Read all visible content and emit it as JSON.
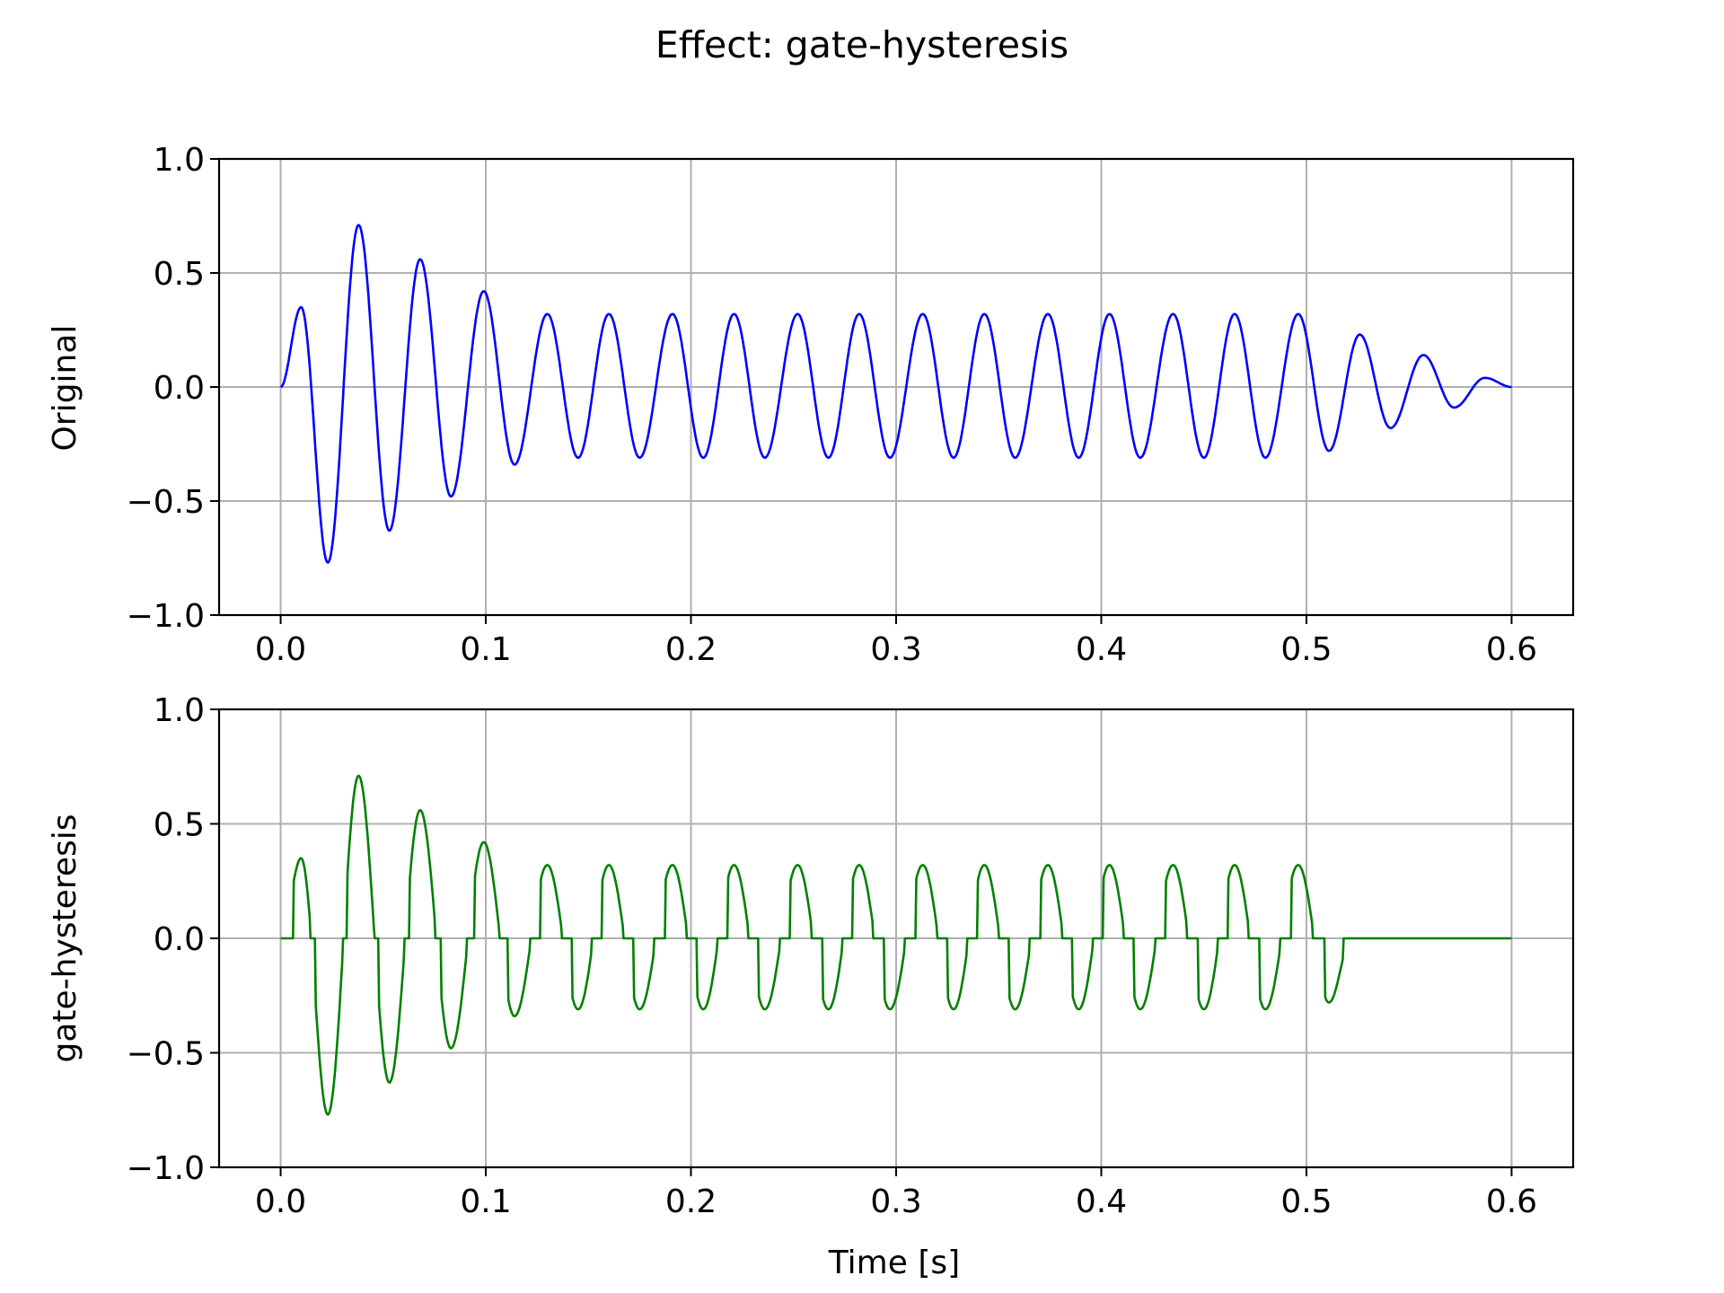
{
  "chart_data": {
    "type": "line",
    "title": "Effect: gate-hysteresis",
    "grid": true,
    "xlabel": "Time [s]",
    "panels": [
      {
        "ylabel": "Original",
        "xlim": [
          -0.03,
          0.63
        ],
        "ylim": [
          -1.0,
          1.0
        ],
        "xticks": [
          0.0,
          0.1,
          0.2,
          0.3,
          0.4,
          0.5,
          0.6
        ],
        "xtick_labels": [
          "0.0",
          "0.1",
          "0.2",
          "0.3",
          "0.4",
          "0.5",
          "0.6"
        ],
        "yticks": [
          -1.0,
          -0.5,
          0.0,
          0.5,
          1.0
        ],
        "ytick_labels": [
          "−1.0",
          "−0.5",
          "0.0",
          "0.5",
          "1.0"
        ],
        "series": [
          {
            "color": "#0000ff",
            "x": [
              0.0,
              0.01,
              0.023,
              0.038,
              0.053,
              0.068,
              0.083,
              0.099,
              0.114,
              0.13,
              0.145,
              0.16,
              0.175,
              0.191,
              0.206,
              0.221,
              0.236,
              0.252,
              0.267,
              0.282,
              0.297,
              0.313,
              0.328,
              0.343,
              0.358,
              0.374,
              0.389,
              0.404,
              0.419,
              0.435,
              0.45,
              0.465,
              0.48,
              0.496,
              0.511,
              0.526,
              0.541,
              0.557,
              0.572,
              0.587,
              0.6
            ],
            "y": [
              0.0,
              0.35,
              -0.77,
              0.71,
              -0.63,
              0.56,
              -0.48,
              0.42,
              -0.34,
              0.32,
              -0.31,
              0.32,
              -0.31,
              0.32,
              -0.31,
              0.32,
              -0.31,
              0.32,
              -0.31,
              0.32,
              -0.31,
              0.32,
              -0.31,
              0.32,
              -0.31,
              0.32,
              -0.31,
              0.32,
              -0.31,
              0.32,
              -0.31,
              0.32,
              -0.31,
              0.32,
              -0.28,
              0.23,
              -0.18,
              0.14,
              -0.09,
              0.04,
              0.0
            ]
          }
        ]
      },
      {
        "ylabel": "gate-hysteresis",
        "xlim": [
          -0.03,
          0.63
        ],
        "ylim": [
          -1.0,
          1.0
        ],
        "xticks": [
          0.0,
          0.1,
          0.2,
          0.3,
          0.4,
          0.5,
          0.6
        ],
        "xtick_labels": [
          "0.0",
          "0.1",
          "0.2",
          "0.3",
          "0.4",
          "0.5",
          "0.6"
        ],
        "yticks": [
          -1.0,
          -0.5,
          0.0,
          0.5,
          1.0
        ],
        "ytick_labels": [
          "−1.0",
          "−0.5",
          "0.0",
          "0.5",
          "1.0"
        ],
        "series": [
          {
            "color": "#008000",
            "x": [
              0.0,
              0.01,
              0.023,
              0.038,
              0.053,
              0.068,
              0.083,
              0.099,
              0.114,
              0.13,
              0.145,
              0.16,
              0.175,
              0.191,
              0.206,
              0.221,
              0.236,
              0.252,
              0.267,
              0.282,
              0.297,
              0.313,
              0.328,
              0.343,
              0.358,
              0.374,
              0.389,
              0.404,
              0.419,
              0.435,
              0.45,
              0.465,
              0.48,
              0.496,
              0.511,
              0.518,
              0.6
            ],
            "y": [
              0.0,
              0.35,
              -0.77,
              0.71,
              -0.63,
              0.56,
              -0.48,
              0.42,
              -0.34,
              0.32,
              -0.31,
              0.32,
              -0.31,
              0.32,
              -0.31,
              0.32,
              -0.31,
              0.32,
              -0.31,
              0.32,
              -0.31,
              0.32,
              -0.31,
              0.32,
              -0.31,
              0.32,
              -0.31,
              0.32,
              -0.31,
              0.32,
              -0.31,
              0.32,
              -0.31,
              0.32,
              -0.28,
              0.0,
              0.0
            ]
          }
        ]
      }
    ]
  }
}
